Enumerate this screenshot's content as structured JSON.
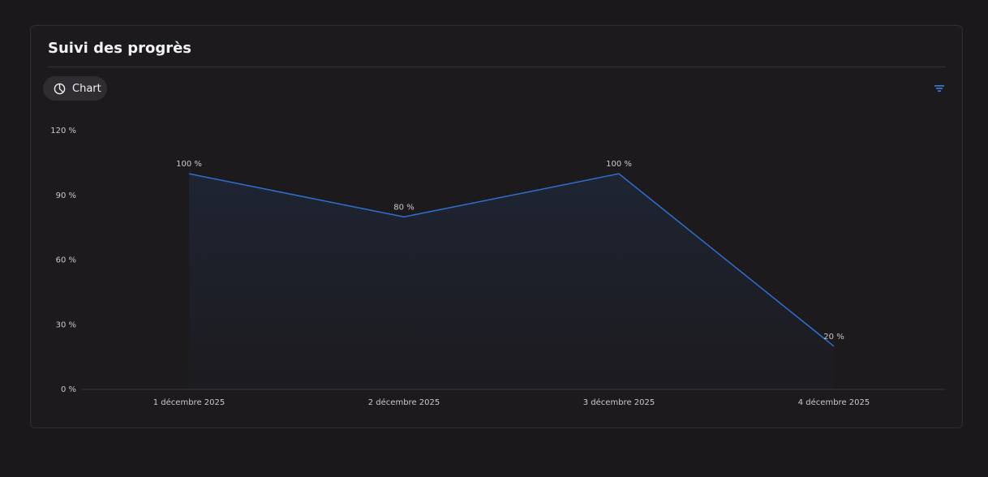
{
  "card": {
    "title": "Suivi des progrès",
    "button": "Chart"
  },
  "chart_data": {
    "type": "area",
    "categories": [
      "1 décembre 2025",
      "2 décembre 2025",
      "3 décembre 2025",
      "4 décembre 2025"
    ],
    "values": [
      100,
      80,
      100,
      20
    ],
    "value_labels": [
      "100 %",
      "80 %",
      "100 %",
      "20 %"
    ],
    "color": "#2f6fd0",
    "ylim": [
      0,
      120
    ],
    "yticks": [
      {
        "value": 0,
        "label": "0 %"
      },
      {
        "value": 30,
        "label": "30 %"
      },
      {
        "value": 60,
        "label": "60 %"
      },
      {
        "value": 90,
        "label": "90 %"
      },
      {
        "value": 120,
        "label": "120 %"
      }
    ]
  }
}
